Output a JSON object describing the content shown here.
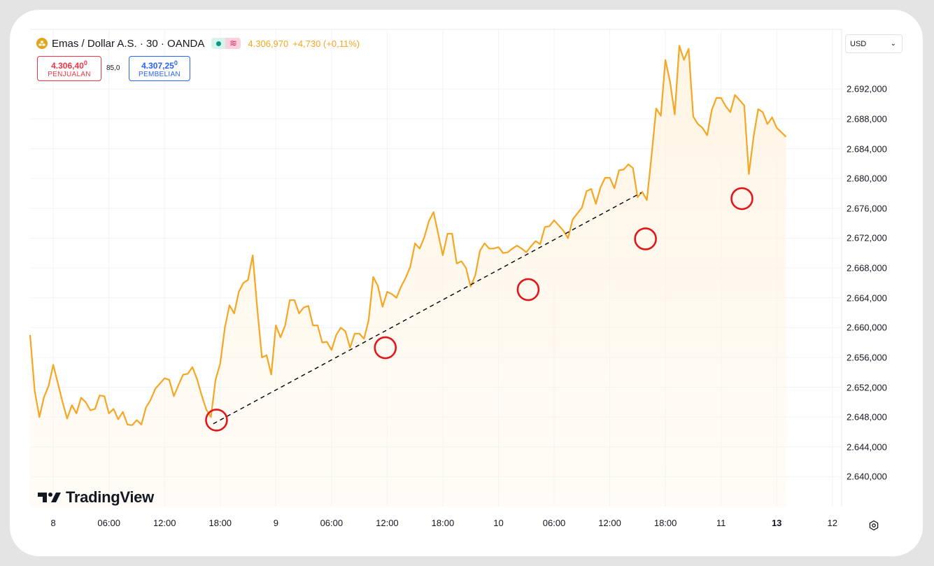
{
  "header": {
    "symbol_icon": "gold-bars-icon",
    "symbol": "Emas / Dollar A.S. · 30 · OANDA",
    "last_price": "4.306,970",
    "change": "+4,730 (+0,11%)"
  },
  "trade": {
    "sell_price_main": "4.306,40",
    "sell_price_sup": "0",
    "sell_label": "PENJUALAN",
    "spread": "85,0",
    "buy_price_main": "4.307,25",
    "buy_price_sup": "0",
    "buy_label": "PEMBELIAN"
  },
  "currency": {
    "value": "USD"
  },
  "logo": {
    "text": "TradingView"
  },
  "colors": {
    "line": "#f5a623",
    "fill": "#fff3e0",
    "marker": "#e3161a",
    "trendline": "#000000"
  },
  "chart_data": {
    "type": "area",
    "ylim": [
      2636000,
      2700000
    ],
    "y_ticks": [
      "2.640,000",
      "2.644,000",
      "2.648,000",
      "2.652,000",
      "2.656,000",
      "2.660,000",
      "2.664,000",
      "2.668,000",
      "2.672,000",
      "2.676,000",
      "2.680,000",
      "2.684,000",
      "2.688,000",
      "2.692,000"
    ],
    "y_tick_values": [
      2640000,
      2644000,
      2648000,
      2652000,
      2656000,
      2660000,
      2664000,
      2668000,
      2672000,
      2676000,
      2680000,
      2684000,
      2688000,
      2692000
    ],
    "x_labels": [
      {
        "label": "8",
        "t": 2,
        "bold": false
      },
      {
        "label": "06:00",
        "t": 14,
        "bold": false
      },
      {
        "label": "12:00",
        "t": 26,
        "bold": false
      },
      {
        "label": "18:00",
        "t": 38,
        "bold": false
      },
      {
        "label": "9",
        "t": 50,
        "bold": false
      },
      {
        "label": "06:00",
        "t": 62,
        "bold": false
      },
      {
        "label": "12:00",
        "t": 74,
        "bold": false
      },
      {
        "label": "18:00",
        "t": 86,
        "bold": false
      },
      {
        "label": "10",
        "t": 98,
        "bold": false
      },
      {
        "label": "06:00",
        "t": 110,
        "bold": false
      },
      {
        "label": "12:00",
        "t": 122,
        "bold": false
      },
      {
        "label": "18:00",
        "t": 134,
        "bold": false
      },
      {
        "label": "11",
        "t": 146,
        "bold": false
      },
      {
        "label": "13",
        "t": 158,
        "bold": true
      },
      {
        "label": "12",
        "t": 170,
        "bold": false
      }
    ],
    "x_range": [
      -3,
      172
    ],
    "series": [
      {
        "values": [
          [
            -3,
            2659000
          ],
          [
            -2,
            2651500
          ],
          [
            -1,
            2648000
          ],
          [
            0,
            2650700
          ],
          [
            1,
            2652200
          ],
          [
            2,
            2655000
          ],
          [
            3,
            2652500
          ],
          [
            4,
            2650000
          ],
          [
            5,
            2647800
          ],
          [
            6,
            2649600
          ],
          [
            7,
            2648500
          ],
          [
            8,
            2650600
          ],
          [
            9,
            2650000
          ],
          [
            10,
            2648900
          ],
          [
            11,
            2649100
          ],
          [
            12,
            2650900
          ],
          [
            13,
            2650800
          ],
          [
            14,
            2648500
          ],
          [
            15,
            2649100
          ],
          [
            16,
            2647700
          ],
          [
            17,
            2648700
          ],
          [
            18,
            2647000
          ],
          [
            19,
            2646900
          ],
          [
            20,
            2647600
          ],
          [
            21,
            2647000
          ],
          [
            22,
            2649300
          ],
          [
            23,
            2650300
          ],
          [
            24,
            2651800
          ],
          [
            25,
            2652500
          ],
          [
            26,
            2653200
          ],
          [
            27,
            2653000
          ],
          [
            28,
            2650800
          ],
          [
            29,
            2652300
          ],
          [
            30,
            2653700
          ],
          [
            31,
            2653800
          ],
          [
            32,
            2654700
          ],
          [
            33,
            2653100
          ],
          [
            34,
            2650900
          ],
          [
            35,
            2649000
          ],
          [
            36,
            2648000
          ],
          [
            37,
            2653000
          ],
          [
            38,
            2655200
          ],
          [
            39,
            2660000
          ],
          [
            40,
            2663000
          ],
          [
            41,
            2661900
          ],
          [
            42,
            2664800
          ],
          [
            43,
            2666000
          ],
          [
            44,
            2666400
          ],
          [
            45,
            2669700
          ],
          [
            46,
            2662500
          ],
          [
            47,
            2656000
          ],
          [
            48,
            2656300
          ],
          [
            49,
            2653700
          ],
          [
            50,
            2660300
          ],
          [
            51,
            2658700
          ],
          [
            52,
            2660300
          ],
          [
            53,
            2663700
          ],
          [
            54,
            2663700
          ],
          [
            55,
            2661900
          ],
          [
            56,
            2662700
          ],
          [
            57,
            2662900
          ],
          [
            58,
            2660300
          ],
          [
            59,
            2660300
          ],
          [
            60,
            2658000
          ],
          [
            61,
            2658100
          ],
          [
            62,
            2657000
          ],
          [
            63,
            2659000
          ],
          [
            64,
            2660000
          ],
          [
            65,
            2659500
          ],
          [
            66,
            2657300
          ],
          [
            67,
            2659200
          ],
          [
            68,
            2659200
          ],
          [
            69,
            2658500
          ],
          [
            70,
            2661000
          ],
          [
            71,
            2666800
          ],
          [
            72,
            2665600
          ],
          [
            73,
            2662800
          ],
          [
            74,
            2664800
          ],
          [
            75,
            2664500
          ],
          [
            76,
            2664000
          ],
          [
            77,
            2665500
          ],
          [
            78,
            2666700
          ],
          [
            79,
            2668200
          ],
          [
            80,
            2671300
          ],
          [
            81,
            2670600
          ],
          [
            82,
            2672100
          ],
          [
            83,
            2674300
          ],
          [
            84,
            2675500
          ],
          [
            85,
            2672600
          ],
          [
            86,
            2669700
          ],
          [
            87,
            2672600
          ],
          [
            88,
            2672600
          ],
          [
            89,
            2668600
          ],
          [
            90,
            2668900
          ],
          [
            91,
            2668000
          ],
          [
            92,
            2665500
          ],
          [
            93,
            2667000
          ],
          [
            94,
            2670300
          ],
          [
            95,
            2671300
          ],
          [
            96,
            2670600
          ],
          [
            97,
            2670600
          ],
          [
            98,
            2670800
          ],
          [
            99,
            2670000
          ],
          [
            100,
            2670100
          ],
          [
            101,
            2670600
          ],
          [
            102,
            2671000
          ],
          [
            103,
            2670600
          ],
          [
            104,
            2670100
          ],
          [
            105,
            2670900
          ],
          [
            106,
            2671600
          ],
          [
            107,
            2671200
          ],
          [
            108,
            2673500
          ],
          [
            109,
            2673600
          ],
          [
            110,
            2674400
          ],
          [
            111,
            2673700
          ],
          [
            112,
            2673000
          ],
          [
            113,
            2672000
          ],
          [
            114,
            2674500
          ],
          [
            115,
            2675300
          ],
          [
            116,
            2676100
          ],
          [
            117,
            2678300
          ],
          [
            118,
            2678600
          ],
          [
            119,
            2676600
          ],
          [
            120,
            2678800
          ],
          [
            121,
            2680100
          ],
          [
            122,
            2680100
          ],
          [
            123,
            2678700
          ],
          [
            124,
            2681100
          ],
          [
            125,
            2681200
          ],
          [
            126,
            2681900
          ],
          [
            127,
            2681400
          ],
          [
            128,
            2677500
          ],
          [
            129,
            2678200
          ],
          [
            130,
            2677100
          ],
          [
            131,
            2683000
          ],
          [
            132,
            2689400
          ],
          [
            133,
            2688400
          ],
          [
            134,
            2695900
          ],
          [
            135,
            2693000
          ],
          [
            136,
            2688600
          ],
          [
            137,
            2697800
          ],
          [
            138,
            2695900
          ],
          [
            139,
            2697400
          ],
          [
            140,
            2688300
          ],
          [
            141,
            2687300
          ],
          [
            142,
            2686800
          ],
          [
            143,
            2685800
          ],
          [
            144,
            2689200
          ],
          [
            145,
            2690800
          ],
          [
            146,
            2690800
          ],
          [
            147,
            2689700
          ],
          [
            148,
            2688900
          ],
          [
            149,
            2691200
          ],
          [
            150,
            2690500
          ],
          [
            151,
            2689800
          ],
          [
            152,
            2680600
          ],
          [
            153,
            2685600
          ],
          [
            154,
            2689300
          ],
          [
            155,
            2688900
          ],
          [
            156,
            2687300
          ],
          [
            157,
            2688200
          ],
          [
            158,
            2686800
          ],
          [
            159,
            2686200
          ],
          [
            160,
            2685600
          ]
        ]
      }
    ],
    "trendline": {
      "start": [
        36.5,
        2647100
      ],
      "end": [
        128.8,
        2678100
      ]
    },
    "markers": [
      {
        "t": 37.2,
        "y": 2647600
      },
      {
        "t": 73.6,
        "y": 2657300
      },
      {
        "t": 104.4,
        "y": 2665100
      },
      {
        "t": 129.7,
        "y": 2671900
      },
      {
        "t": 150.5,
        "y": 2677300
      }
    ]
  }
}
